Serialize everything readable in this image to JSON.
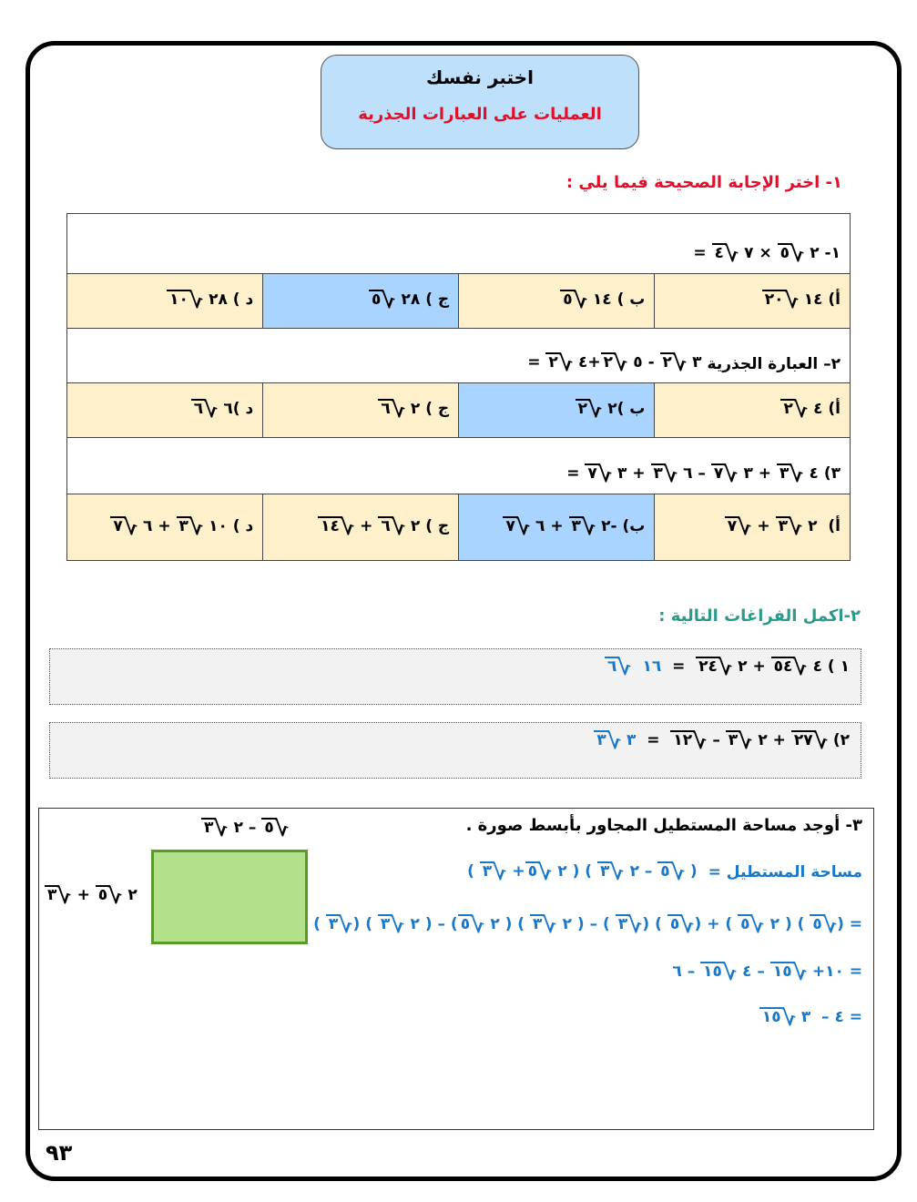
{
  "header": {
    "title": "اختبر نفسك",
    "subtitle": "العمليات على العبارات الجذرية"
  },
  "section1": {
    "heading": "١-  اختر الإجابة الصحيحة فيما يلي :",
    "accent_color": "#e0102a",
    "questions": [
      {
        "label": "",
        "stem": [
          "= ",
          {
            "r": "٤"
          },
          " ٧ × ",
          {
            "r": "٥"
          },
          " ٢ -١"
        ],
        "options": [
          {
            "expr": [
              {
                "r": "٢٠"
              },
              " ١٤ (أ"
            ],
            "correct": false
          },
          {
            "expr": [
              {
                "r": "٥"
              },
              " ١٤ ( ب"
            ],
            "correct": false
          },
          {
            "expr": [
              {
                "r": "٥"
              },
              " ٢٨ ( ج"
            ],
            "correct": true
          },
          {
            "expr": [
              {
                "r": "١٠"
              },
              " ٢٨ ( د"
            ],
            "correct": false
          }
        ]
      },
      {
        "label": "٢– العبارة الجذرية",
        "stem": [
          "= ",
          {
            "r": "٢"
          },
          " ٤+",
          {
            "r": "٢"
          },
          " ٥ - ",
          {
            "r": "٢"
          },
          " ٣"
        ],
        "options": [
          {
            "expr": [
              {
                "r": "٢"
              },
              " ٤ (أ"
            ],
            "correct": false
          },
          {
            "expr": [
              {
                "r": "٢"
              },
              " ٢( ب"
            ],
            "correct": true
          },
          {
            "expr": [
              {
                "r": "٦"
              },
              " ٢ ( ج"
            ],
            "correct": false
          },
          {
            "expr": [
              {
                "r": "٦"
              },
              " ٦( د"
            ],
            "correct": false
          }
        ]
      },
      {
        "label": "",
        "stem": [
          "= ",
          {
            "r": "٧"
          },
          " ٣ + ",
          {
            "r": "٣"
          },
          " ٦ – ",
          {
            "r": "٧"
          },
          " ٣ + ",
          {
            "r": "٣"
          },
          " ٤ (٣"
        ],
        "options": [
          {
            "expr": [
              {
                "r": "٧"
              },
              " + ",
              {
                "r": "٣"
              },
              " ٢  (أ"
            ],
            "correct": false
          },
          {
            "expr": [
              {
                "r": "٧"
              },
              " ٦ + ",
              {
                "r": "٣"
              },
              " ٢- (ب"
            ],
            "correct": true
          },
          {
            "expr": [
              {
                "r": "١٤"
              },
              " + ",
              {
                "r": "٦"
              },
              " ٢ ( ج"
            ],
            "correct": false
          },
          {
            "expr": [
              {
                "r": "٧"
              },
              " ٦ + ",
              {
                "r": "٣"
              },
              " ١٠ ( د"
            ],
            "correct": false
          }
        ]
      }
    ],
    "correct_color": "#a9d4ff",
    "option_color": "#fff0cc"
  },
  "section2": {
    "heading": "٢-اكمل الفراغات التالية :",
    "accent_color": "#2a9a8a",
    "items": [
      {
        "answer": [
          {
            "r": "٦"
          },
          "  ١٦"
        ],
        "expr": [
          "  =  ",
          {
            "r": "٢٤"
          },
          " ٢ + ",
          {
            "r": "٥٤"
          },
          " ٤ ( ١"
        ]
      },
      {
        "answer": [
          {
            "r": "٣"
          },
          " ٣"
        ],
        "expr": [
          "  =  ",
          {
            "r": "١٢"
          },
          " – ",
          {
            "r": "٣"
          },
          " ٢ + ",
          {
            "r": "٢٧"
          },
          " (٢"
        ]
      }
    ]
  },
  "section3": {
    "title": "٣- أوجد مساحة المستطيل المجاور بأبسط صورة .",
    "area_label": "مساحة المستطيل =",
    "lines": [
      [
        "( ",
        {
          "r": "٣"
        },
        " +",
        {
          "r": "٥"
        },
        " ٢ ) ( ",
        {
          "r": "٣"
        },
        " ٢ – ",
        {
          "r": "٥"
        },
        " )"
      ],
      [
        "( ",
        {
          "r": "٣"
        },
        ") ( ",
        {
          "r": "٣"
        },
        " ٢ ) – (",
        {
          "r": "٥"
        },
        " ٢ ) ( ",
        {
          "r": "٣"
        },
        " ٢ ) – ( ",
        {
          "r": "٣"
        },
        ") ( ",
        {
          "r": "٥"
        },
        ") + ( ",
        {
          "r": "٥"
        },
        " ٢ ) ( ",
        {
          "r": "٥"
        },
        ") ="
      ],
      [
        "٦ – ",
        {
          "r": "١٥"
        },
        " ٤ – ",
        {
          "r": "١٥"
        },
        " +١٠ ="
      ],
      [
        {
          "r": "١٥"
        },
        " ٣  – ٤ ="
      ]
    ],
    "rect_top": [
      {
        "r": "٣"
      },
      " ٢ – ",
      {
        "r": "٥"
      }
    ],
    "rect_left": [
      {
        "r": "٣"
      },
      " + ",
      {
        "r": "٥"
      },
      " ٢"
    ],
    "rect_fill": "#b3e08a",
    "rect_border": "#5a9a2a"
  },
  "page_number": "٩٣"
}
